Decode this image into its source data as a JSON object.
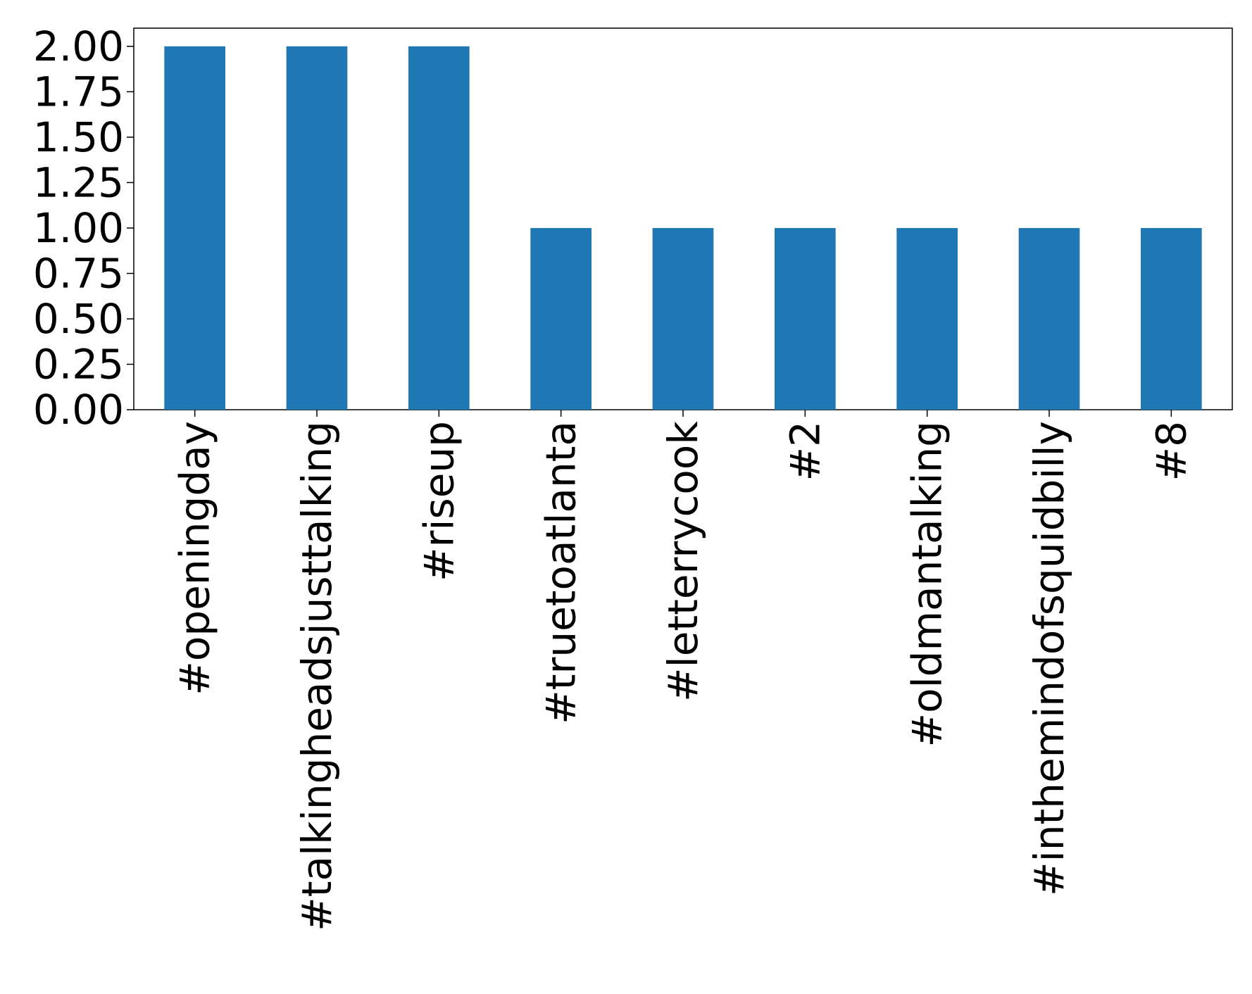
{
  "chart_data": {
    "type": "bar",
    "title": "",
    "xlabel": "",
    "ylabel": "",
    "categories": [
      "#openingday",
      "#talkingheadsjusttalking",
      "#riseup",
      "#truetoatlanta",
      "#letterrycook",
      "#2",
      "#oldmantalking",
      "#inthemindofsquidbilly",
      "#8"
    ],
    "values": [
      2,
      2,
      2,
      1,
      1,
      1,
      1,
      1,
      1
    ],
    "ylim": [
      0,
      2.1
    ],
    "yticks": [
      "0.00",
      "0.25",
      "0.50",
      "0.75",
      "1.00",
      "1.25",
      "1.50",
      "1.75",
      "2.00"
    ],
    "grid": false,
    "legend": "none",
    "bar_color": "#1f77b4"
  }
}
